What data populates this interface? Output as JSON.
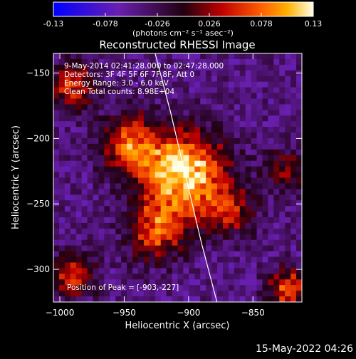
{
  "chart_data": {
    "type": "heatmap",
    "title": "Reconstructed RHESSI Image",
    "xlabel": "Heliocentric X (arcsec)",
    "ylabel": "Heliocentric Y (arcsec)",
    "xlim": [
      -1005,
      -812
    ],
    "ylim": [
      -325,
      -135
    ],
    "x_ticks": [
      -1000,
      -950,
      -900,
      -850
    ],
    "y_ticks": [
      -150,
      -200,
      -250,
      -300
    ],
    "colorbar": {
      "min": -0.13,
      "max": 0.13,
      "ticks": [
        "-0.13",
        "-0.078",
        "-0.026",
        "0.026",
        "0.078",
        "0.13"
      ],
      "units_label": "(photons cm⁻² s⁻¹ asec⁻²)",
      "colormap": "blue-purple-red-orange-yellow-white"
    },
    "annotations": [
      "9-May-2014 02:41:28.000 to 02:47:28.000",
      "Detectors: 3F 4F 5F 6F 7F 8F, Att 0",
      "Energy Range: 3.0 - 6.0 keV",
      "Clean    Total counts: 8.98E+04"
    ],
    "peak_label": "Position of Peak = [-903,-227]",
    "peak": {
      "x": -903,
      "y": -227,
      "value": 0.13
    },
    "limb_curve": [
      [
        -926,
        -135
      ],
      [
        -914,
        -180
      ],
      [
        -902,
        -230
      ],
      [
        -890,
        -280
      ],
      [
        -878,
        -325
      ]
    ],
    "sources": [
      {
        "x": -903,
        "y": -227,
        "value": 0.13,
        "sigma": 22
      },
      {
        "x": -945,
        "y": -205,
        "value": 0.07,
        "sigma": 16
      },
      {
        "x": -925,
        "y": -270,
        "value": 0.06,
        "sigma": 16
      },
      {
        "x": -868,
        "y": -255,
        "value": 0.035,
        "sigma": 14
      },
      {
        "x": -990,
        "y": -160,
        "value": 0.06,
        "sigma": 12
      },
      {
        "x": -990,
        "y": -305,
        "value": 0.05,
        "sigma": 12
      },
      {
        "x": -822,
        "y": -315,
        "value": 0.07,
        "sigma": 11
      },
      {
        "x": -825,
        "y": -225,
        "value": 0.02,
        "sigma": 12
      },
      {
        "x": -880,
        "y": -300,
        "value": -0.05,
        "sigma": 10
      }
    ]
  },
  "footer": {
    "timestamp": "15-May-2022 04:26"
  }
}
